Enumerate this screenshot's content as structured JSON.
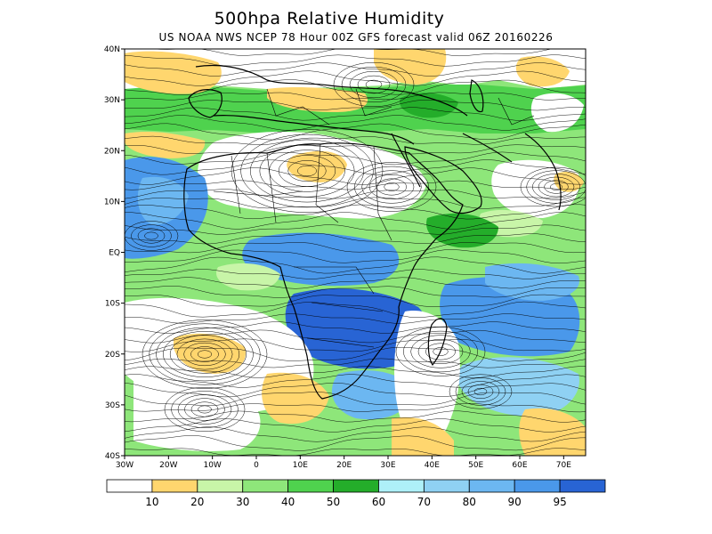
{
  "title": "500hpa Relative Humidity",
  "subtitle": "US NOAA NWS NCEP 78 Hour 00Z GFS forecast valid 06Z 20160226",
  "map": {
    "lon_range": [
      -30,
      75
    ],
    "lat_range": [
      -40,
      40
    ],
    "lat_labels": [
      "40N",
      "30N",
      "20N",
      "10N",
      "EQ",
      "10S",
      "20S",
      "30S",
      "40S"
    ],
    "lat_values": [
      40,
      30,
      20,
      10,
      0,
      -10,
      -20,
      -30,
      -40
    ],
    "lon_labels": [
      "30W",
      "20W",
      "10W",
      "0",
      "10E",
      "20E",
      "30E",
      "40E",
      "50E",
      "60E",
      "70E"
    ],
    "lon_values": [
      -30,
      -20,
      -10,
      0,
      10,
      20,
      30,
      40,
      50,
      60,
      70
    ],
    "coastline_color": "#000000",
    "streamline_color": "#000000"
  },
  "legend": {
    "bins": [
      {
        "color": "#ffffff"
      },
      {
        "color": "#ffd66e"
      },
      {
        "color": "#c8f5a8"
      },
      {
        "color": "#8ee67a"
      },
      {
        "color": "#4fd24e"
      },
      {
        "color": "#24ad2a"
      },
      {
        "color": "#aef0f8"
      },
      {
        "color": "#8fd1f3"
      },
      {
        "color": "#6cb7f1"
      },
      {
        "color": "#4a98ea"
      },
      {
        "color": "#2864d4"
      }
    ],
    "labels": [
      "10",
      "20",
      "30",
      "40",
      "50",
      "60",
      "70",
      "80",
      "90",
      "95"
    ]
  }
}
